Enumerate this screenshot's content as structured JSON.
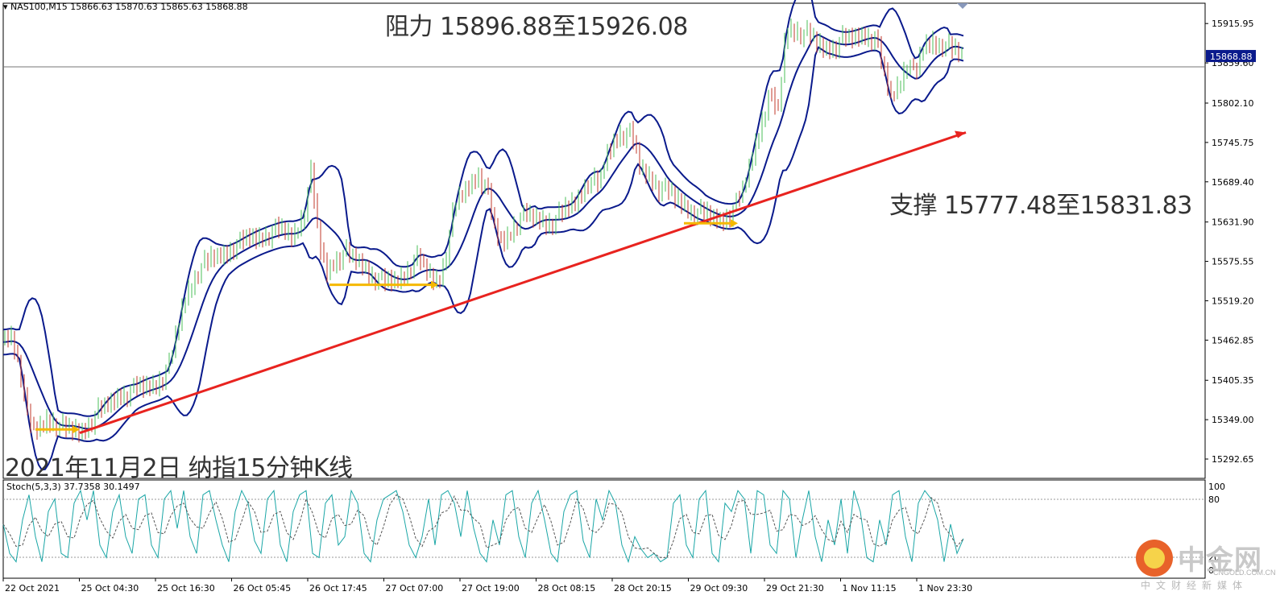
{
  "header": {
    "symbol_ohlc": "NAS100,M15  15866.63 15870.63 15865.63 15868.88"
  },
  "annotations": {
    "resistance": "阻力 15896.88至15926.08",
    "support": "支撑 15777.48至15831.83",
    "caption": "2021年11月2日 纳指15分钟K线"
  },
  "stoch": {
    "title": "Stoch(5,3,3) 37.7358 30.1497",
    "levels": [
      "100",
      "80",
      "20",
      "0"
    ]
  },
  "watermark": {
    "name": "中金网",
    "domain": "CNGOLD.COM.CN",
    "subtitle": "中文财经新媒体"
  },
  "colors": {
    "bollinger": "#0a1a8c",
    "candle_up": "#4bbf5a",
    "candle_down": "#c0392b",
    "trendline": "#e8231f",
    "flat_arrows": "#f5b800",
    "stoch_main": "#1aa6a6",
    "stoch_signal": "#555555",
    "price_tag_bg": "#0a1a8c"
  },
  "chart_data": {
    "type": "line",
    "title": "NAS100,M15",
    "current_price": "15868.88",
    "y_ticks": [
      "15915.95",
      "15859.60",
      "15802.10",
      "15745.75",
      "15689.40",
      "15631.90",
      "15575.55",
      "15519.20",
      "15462.85",
      "15405.35",
      "15349.00",
      "15292.65"
    ],
    "x_ticks": [
      "22 Oct 2021",
      "25 Oct 04:30",
      "25 Oct 16:30",
      "26 Oct 05:45",
      "26 Oct 17:45",
      "27 Oct 07:00",
      "27 Oct 19:00",
      "28 Oct 08:15",
      "28 Oct 20:15",
      "29 Oct 09:30",
      "29 Oct 21:30",
      "1 Nov 11:15",
      "1 Nov 23:30"
    ],
    "ylim": [
      15265,
      15945
    ],
    "price_path": [
      [
        0,
        15460
      ],
      [
        10,
        15470
      ],
      [
        20,
        15430
      ],
      [
        30,
        15350
      ],
      [
        40,
        15330
      ],
      [
        55,
        15350
      ],
      [
        70,
        15340
      ],
      [
        85,
        15330
      ],
      [
        100,
        15335
      ],
      [
        115,
        15355
      ],
      [
        130,
        15370
      ],
      [
        145,
        15385
      ],
      [
        160,
        15390
      ],
      [
        175,
        15395
      ],
      [
        190,
        15400
      ],
      [
        205,
        15420
      ],
      [
        215,
        15470
      ],
      [
        225,
        15520
      ],
      [
        240,
        15560
      ],
      [
        255,
        15575
      ],
      [
        270,
        15585
      ],
      [
        285,
        15595
      ],
      [
        300,
        15605
      ],
      [
        315,
        15610
      ],
      [
        330,
        15615
      ],
      [
        345,
        15620
      ],
      [
        360,
        15610
      ],
      [
        372,
        15640
      ],
      [
        382,
        15700
      ],
      [
        392,
        15600
      ],
      [
        402,
        15560
      ],
      [
        412,
        15580
      ],
      [
        425,
        15585
      ],
      [
        440,
        15575
      ],
      [
        455,
        15560
      ],
      [
        470,
        15545
      ],
      [
        485,
        15545
      ],
      [
        500,
        15560
      ],
      [
        515,
        15580
      ],
      [
        525,
        15560
      ],
      [
        540,
        15545
      ],
      [
        550,
        15590
      ],
      [
        560,
        15650
      ],
      [
        575,
        15680
      ],
      [
        590,
        15700
      ],
      [
        600,
        15680
      ],
      [
        610,
        15620
      ],
      [
        620,
        15600
      ],
      [
        635,
        15630
      ],
      [
        650,
        15640
      ],
      [
        665,
        15635
      ],
      [
        680,
        15630
      ],
      [
        695,
        15645
      ],
      [
        710,
        15660
      ],
      [
        725,
        15690
      ],
      [
        740,
        15685
      ],
      [
        750,
        15730
      ],
      [
        765,
        15760
      ],
      [
        780,
        15755
      ],
      [
        790,
        15710
      ],
      [
        800,
        15700
      ],
      [
        815,
        15680
      ],
      [
        830,
        15670
      ],
      [
        845,
        15655
      ],
      [
        860,
        15645
      ],
      [
        875,
        15640
      ],
      [
        890,
        15635
      ],
      [
        905,
        15645
      ],
      [
        920,
        15680
      ],
      [
        935,
        15750
      ],
      [
        950,
        15810
      ],
      [
        962,
        15790
      ],
      [
        972,
        15910
      ],
      [
        985,
        15905
      ],
      [
        998,
        15900
      ],
      [
        1010,
        15885
      ],
      [
        1025,
        15880
      ],
      [
        1040,
        15890
      ],
      [
        1055,
        15895
      ],
      [
        1070,
        15900
      ],
      [
        1082,
        15895
      ],
      [
        1092,
        15850
      ],
      [
        1102,
        15810
      ],
      [
        1112,
        15830
      ],
      [
        1122,
        15860
      ],
      [
        1132,
        15840
      ],
      [
        1142,
        15880
      ],
      [
        1155,
        15890
      ],
      [
        1168,
        15885
      ],
      [
        1180,
        15875
      ],
      [
        1192,
        15868.88
      ]
    ],
    "trendline": [
      [
        95,
        15330
      ],
      [
        1195,
        15760
      ]
    ],
    "flat_arrows": [
      {
        "x": [
          40,
          95
        ],
        "y": 15335
      },
      {
        "x": [
          405,
          540
        ],
        "y": 15542
      },
      {
        "x": [
          845,
          912
        ],
        "y": 15630
      }
    ],
    "stoch_main": [
      [
        0,
        55
      ],
      [
        8,
        20
      ],
      [
        16,
        10
      ],
      [
        24,
        60
      ],
      [
        32,
        90
      ],
      [
        40,
        40
      ],
      [
        48,
        10
      ],
      [
        56,
        70
      ],
      [
        64,
        85
      ],
      [
        72,
        20
      ],
      [
        80,
        15
      ],
      [
        88,
        80
      ],
      [
        96,
        95
      ],
      [
        104,
        60
      ],
      [
        112,
        95
      ],
      [
        120,
        30
      ],
      [
        128,
        15
      ],
      [
        136,
        70
      ],
      [
        144,
        90
      ],
      [
        152,
        40
      ],
      [
        160,
        20
      ],
      [
        168,
        85
      ],
      [
        176,
        90
      ],
      [
        184,
        30
      ],
      [
        192,
        15
      ],
      [
        200,
        85
      ],
      [
        208,
        95
      ],
      [
        216,
        50
      ],
      [
        224,
        95
      ],
      [
        232,
        40
      ],
      [
        240,
        20
      ],
      [
        248,
        90
      ],
      [
        256,
        95
      ],
      [
        264,
        60
      ],
      [
        272,
        30
      ],
      [
        280,
        10
      ],
      [
        288,
        70
      ],
      [
        296,
        95
      ],
      [
        304,
        80
      ],
      [
        312,
        35
      ],
      [
        320,
        20
      ],
      [
        328,
        85
      ],
      [
        336,
        95
      ],
      [
        344,
        30
      ],
      [
        352,
        10
      ],
      [
        360,
        70
      ],
      [
        368,
        90
      ],
      [
        376,
        95
      ],
      [
        384,
        20
      ],
      [
        392,
        15
      ],
      [
        400,
        80
      ],
      [
        408,
        90
      ],
      [
        416,
        30
      ],
      [
        424,
        40
      ],
      [
        432,
        95
      ],
      [
        440,
        80
      ],
      [
        448,
        20
      ],
      [
        456,
        10
      ],
      [
        464,
        60
      ],
      [
        472,
        85
      ],
      [
        480,
        90
      ],
      [
        488,
        95
      ],
      [
        496,
        70
      ],
      [
        504,
        30
      ],
      [
        512,
        15
      ],
      [
        520,
        40
      ],
      [
        528,
        85
      ],
      [
        536,
        30
      ],
      [
        544,
        90
      ],
      [
        552,
        95
      ],
      [
        560,
        80
      ],
      [
        568,
        40
      ],
      [
        576,
        95
      ],
      [
        584,
        50
      ],
      [
        592,
        20
      ],
      [
        600,
        10
      ],
      [
        608,
        60
      ],
      [
        616,
        30
      ],
      [
        624,
        90
      ],
      [
        632,
        95
      ],
      [
        640,
        40
      ],
      [
        648,
        15
      ],
      [
        656,
        80
      ],
      [
        664,
        95
      ],
      [
        672,
        60
      ],
      [
        680,
        20
      ],
      [
        688,
        10
      ],
      [
        696,
        70
      ],
      [
        704,
        90
      ],
      [
        712,
        95
      ],
      [
        720,
        35
      ],
      [
        728,
        15
      ],
      [
        736,
        85
      ],
      [
        744,
        60
      ],
      [
        752,
        95
      ],
      [
        760,
        80
      ],
      [
        768,
        30
      ],
      [
        776,
        10
      ],
      [
        784,
        40
      ],
      [
        792,
        25
      ],
      [
        800,
        15
      ],
      [
        808,
        20
      ],
      [
        816,
        10
      ],
      [
        824,
        15
      ],
      [
        832,
        80
      ],
      [
        840,
        90
      ],
      [
        848,
        30
      ],
      [
        856,
        15
      ],
      [
        864,
        85
      ],
      [
        872,
        95
      ],
      [
        880,
        20
      ],
      [
        888,
        10
      ],
      [
        896,
        80
      ],
      [
        904,
        70
      ],
      [
        912,
        95
      ],
      [
        920,
        85
      ],
      [
        928,
        20
      ],
      [
        936,
        95
      ],
      [
        944,
        90
      ],
      [
        952,
        30
      ],
      [
        960,
        20
      ],
      [
        968,
        95
      ],
      [
        976,
        85
      ],
      [
        984,
        15
      ],
      [
        992,
        60
      ],
      [
        1000,
        95
      ],
      [
        1008,
        40
      ],
      [
        1016,
        10
      ],
      [
        1024,
        60
      ],
      [
        1032,
        30
      ],
      [
        1040,
        85
      ],
      [
        1048,
        20
      ],
      [
        1056,
        95
      ],
      [
        1064,
        70
      ],
      [
        1072,
        15
      ],
      [
        1080,
        10
      ],
      [
        1088,
        60
      ],
      [
        1096,
        30
      ],
      [
        1104,
        90
      ],
      [
        1112,
        95
      ],
      [
        1120,
        40
      ],
      [
        1128,
        10
      ],
      [
        1136,
        80
      ],
      [
        1144,
        95
      ],
      [
        1152,
        85
      ],
      [
        1160,
        60
      ],
      [
        1168,
        10
      ],
      [
        1176,
        55
      ],
      [
        1184,
        20
      ],
      [
        1192,
        37.7358
      ]
    ]
  }
}
